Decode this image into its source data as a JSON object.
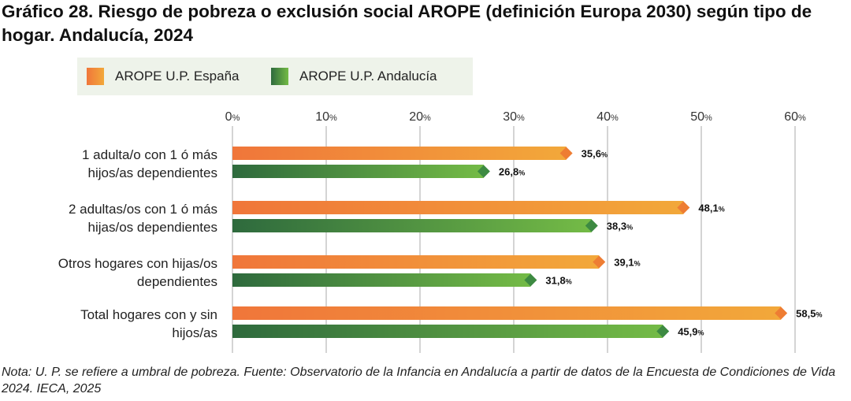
{
  "title": "Gráfico 28. Riesgo de pobreza o exclusión social AROPE (definición Europa 2030) según tipo de hogar. Andalucía, 2024",
  "footnote": "Nota: U. P. se refiere a umbral de pobreza. Fuente: Observatorio de la Infancia en Andalucía a partir de datos de la Encuesta de Condiciones de Vida 2024. IECA, 2025",
  "colors": {
    "espana_start": "#f0763a",
    "espana_end": "#f2a83a",
    "espana_tip": "#ee7d33",
    "andalucia_start": "#2e6a3d",
    "andalucia_end": "#74bb46",
    "andalucia_tip": "#3d8a42",
    "gridline": "#a9a9a9",
    "legend_bg": "#eef3ea"
  },
  "chart_data": {
    "type": "bar",
    "orientation": "horizontal",
    "title": "Riesgo de pobreza o exclusión social AROPE (definición Europa 2030) según tipo de hogar. Andalucía, 2024",
    "xlabel": "",
    "ylabel": "",
    "xlim": [
      0,
      60
    ],
    "tick_values": [
      0,
      10,
      20,
      30,
      40,
      50,
      60
    ],
    "tick_unit": "%",
    "value_unit": "%",
    "grid": true,
    "legend_position": "top-left",
    "categories": [
      [
        "1 adulta/o con 1 ó más",
        "hijos/as dependientes"
      ],
      [
        "2 adultas/os con 1 ó más",
        "hijas/os dependientes"
      ],
      [
        "Otros hogares con hijas/os",
        "dependientes"
      ],
      [
        "Total hogares con y sin",
        "hijos/as"
      ]
    ],
    "series": [
      {
        "name": "AROPE U.P. España",
        "values": [
          35.6,
          48.1,
          39.1,
          58.5
        ],
        "labels": [
          "35,6",
          "48,1",
          "39,1",
          "58,5"
        ]
      },
      {
        "name": "AROPE U.P. Andalucía",
        "values": [
          26.8,
          38.3,
          31.8,
          45.9
        ],
        "labels": [
          "26,8",
          "38,3",
          "31,8",
          "45,9"
        ]
      }
    ]
  }
}
